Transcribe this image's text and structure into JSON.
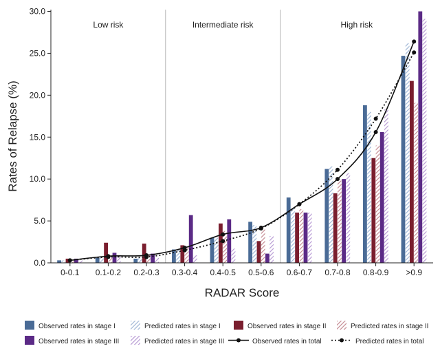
{
  "chart_data": {
    "type": "bar",
    "xlabel": "RADAR Score",
    "ylabel": "Rates of Relapse (%)",
    "ylim": [
      0,
      30
    ],
    "yticks": [
      "0.0",
      "5.0",
      "10.0",
      "15.0",
      "20.0",
      "25.0",
      "30.0"
    ],
    "categories": [
      "0-0.1",
      "0.1-0.2",
      "0.2-0.3",
      "0.3-0.4",
      "0.4-0.5",
      "0.5-0.6",
      "0.6-0.7",
      "0.7-0.8",
      "0.8-0.9",
      ">0.9"
    ],
    "regions": [
      {
        "label": "Low risk",
        "from": 0,
        "to": 2
      },
      {
        "label": "Intermediate risk",
        "from": 3,
        "to": 5
      },
      {
        "label": "High risk",
        "from": 6,
        "to": 9
      }
    ],
    "series": [
      {
        "name": "Observed rates in stage I",
        "kind": "bar",
        "color": "#4a6b96",
        "pattern": "solid",
        "values": [
          0.3,
          0.6,
          0.5,
          1.6,
          3.0,
          4.9,
          7.8,
          11.2,
          18.8,
          24.7
        ]
      },
      {
        "name": "Predicted rates in stage I",
        "kind": "bar",
        "color": "#9fb6d6",
        "pattern": "hatch",
        "values": [
          0.3,
          0.7,
          0.6,
          1.6,
          3.0,
          4.5,
          6.5,
          11.5,
          18.0,
          26.2
        ]
      },
      {
        "name": "Observed rates in stage II",
        "kind": "bar",
        "color": "#7a1e2e",
        "pattern": "solid",
        "values": [
          0.5,
          2.4,
          2.3,
          2.1,
          4.7,
          2.6,
          6.0,
          8.3,
          12.5,
          21.7
        ]
      },
      {
        "name": "Predicted rates in stage II",
        "kind": "bar",
        "color": "#c48a92",
        "pattern": "hatch",
        "values": [
          0.4,
          0.8,
          0.9,
          2.0,
          3.8,
          4.2,
          6.4,
          9.8,
          14.0,
          19.1
        ]
      },
      {
        "name": "Observed rates in stage III",
        "kind": "bar",
        "color": "#5b2a86",
        "pattern": "solid",
        "values": [
          0.5,
          1.2,
          1.1,
          5.7,
          5.2,
          1.1,
          6.0,
          10.0,
          15.6,
          30.0
        ]
      },
      {
        "name": "Predicted rates in stage III",
        "kind": "bar",
        "color": "#b79ad4",
        "pattern": "hatch",
        "values": [
          0.3,
          0.9,
          0.6,
          0.9,
          1.7,
          3.2,
          6.0,
          10.7,
          18.3,
          29.1
        ]
      },
      {
        "name": "Observed rates in total",
        "kind": "line",
        "color": "#111111",
        "dash": false,
        "values": [
          0.3,
          0.8,
          0.9,
          1.8,
          3.4,
          4.2,
          7.0,
          10.0,
          15.6,
          26.4
        ]
      },
      {
        "name": "Predicted rates in total",
        "kind": "line",
        "color": "#111111",
        "dash": true,
        "values": [
          0.3,
          0.7,
          0.7,
          1.5,
          2.6,
          4.1,
          7.0,
          11.1,
          17.2,
          25.1
        ]
      }
    ],
    "legend_position": "bottom"
  }
}
